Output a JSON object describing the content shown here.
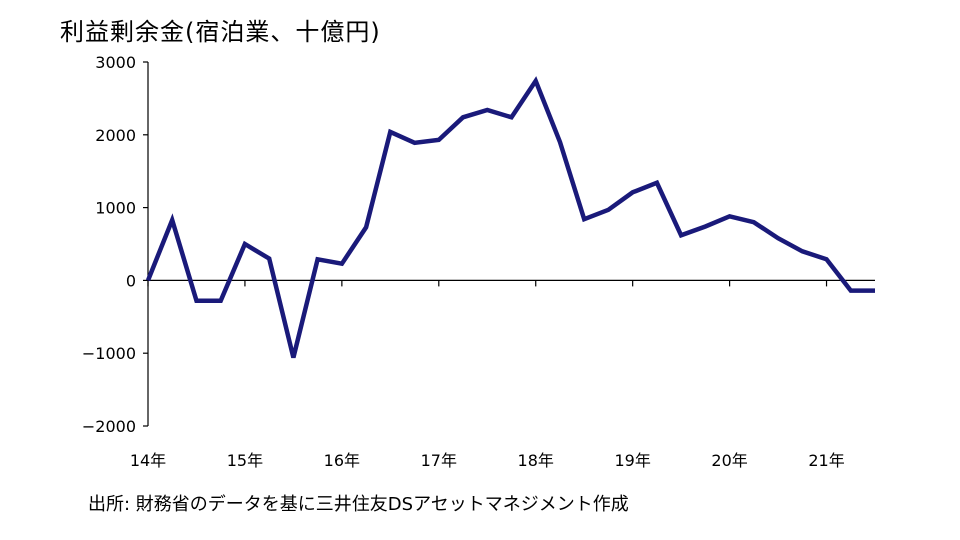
{
  "chart_data": {
    "type": "line",
    "title": "利益剰余金(宿泊業、十億円)",
    "xlabel": "",
    "ylabel": "",
    "ylim": [
      -2000,
      3000
    ],
    "yticks": [
      3000,
      2000,
      1000,
      0,
      -1000,
      -2000
    ],
    "ytick_labels": [
      "3000",
      "2000",
      "1000",
      "0",
      "−1000",
      "−2000"
    ],
    "xtick_labels": [
      "14年",
      "15年",
      "16年",
      "17年",
      "18年",
      "19年",
      "20年",
      "21年"
    ],
    "xtick_index": [
      0,
      4,
      8,
      12,
      16,
      20,
      24,
      28
    ],
    "x_points_total": 31,
    "grid": false,
    "legend": "none",
    "series": [
      {
        "color": "#1a1a7a",
        "values": [
          0,
          830,
          -280,
          -280,
          500,
          300,
          -1060,
          290,
          230,
          730,
          2040,
          1890,
          1930,
          2240,
          2340,
          2240,
          2740,
          1900,
          840,
          970,
          1210,
          1340,
          620,
          740,
          880,
          800,
          580,
          400,
          290,
          -140,
          -140
        ]
      }
    ]
  },
  "source_note": "出所: 財務省のデータを基に三井住友DSアセットマネジメント作成"
}
